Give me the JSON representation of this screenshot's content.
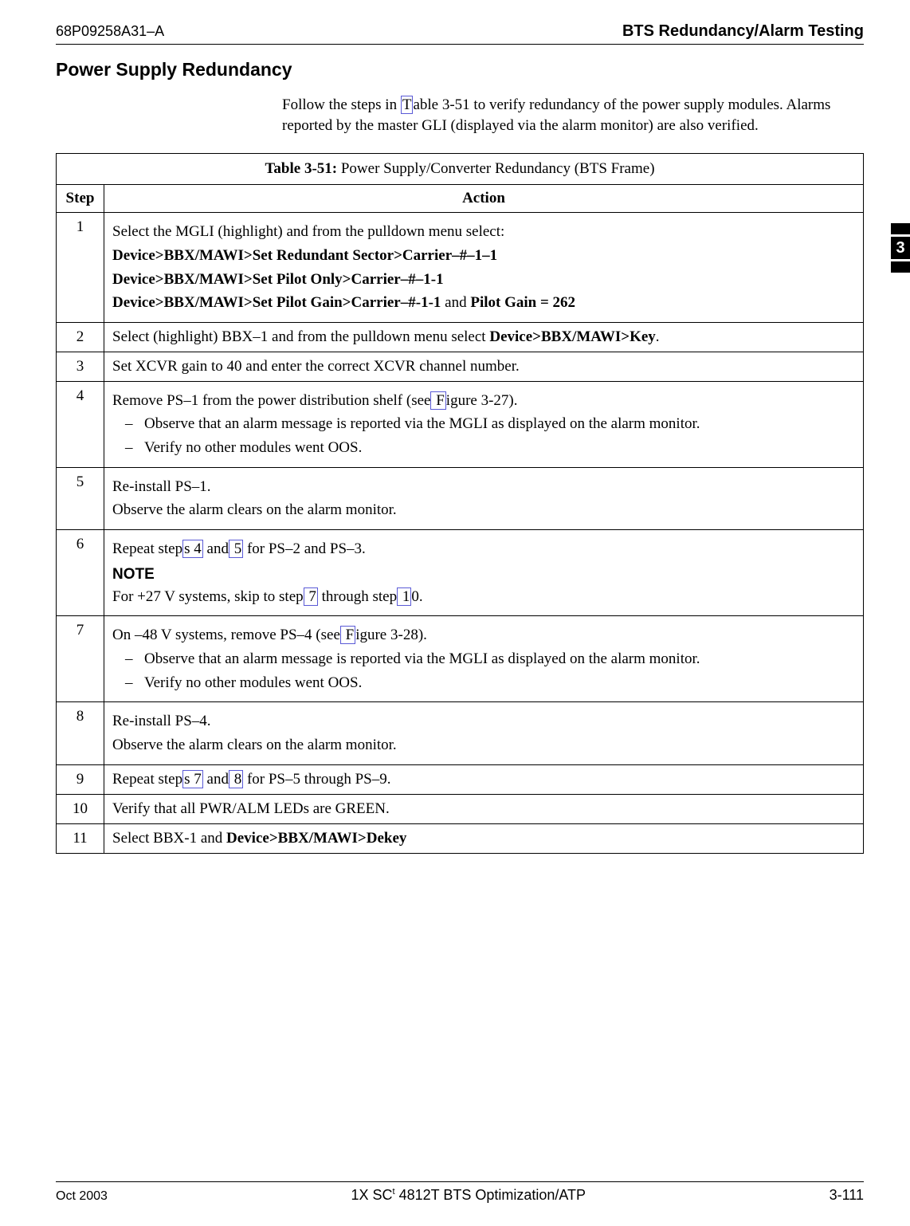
{
  "header": {
    "doc_number": "68P09258A31–A",
    "title": "BTS Redundancy/Alarm Testing"
  },
  "section": {
    "heading": "Power Supply Redundancy",
    "intro_before_link": "Follow the steps in ",
    "intro_link": "T",
    "intro_after_link": "able 3-51 to verify redundancy of the power supply modules. Alarms reported by the master GLI (displayed via the alarm monitor) are also verified."
  },
  "table": {
    "title_prefix": "Table 3-51: ",
    "title_rest": "Power Supply/Converter Redundancy (BTS Frame)",
    "col_step": "Step",
    "col_action": "Action"
  },
  "rows": {
    "r1": {
      "step": "1",
      "l1": "Select the MGLI (highlight) and from the pulldown menu select:",
      "l2": "Device>BBX/MAWI>Set Redundant Sector>Carrier–#–1–1",
      "l3": "Device>BBX/MAWI>Set Pilot Only>Carrier–#–1-1",
      "l4a": "Device>BBX/MAWI>Set Pilot Gain>Carrier–#-1-1",
      "l4b": " and ",
      "l4c": "Pilot Gain = 262"
    },
    "r2": {
      "step": "2",
      "t1": "Select (highlight) BBX–1 and from the pulldown menu select ",
      "t2": "Device>BBX/MAWI>Key",
      "t3": "."
    },
    "r3": {
      "step": "3",
      "t": "Set XCVR gain to 40 and enter the correct XCVR channel number."
    },
    "r4": {
      "step": "4",
      "p1a": "Remove PS–1 from the power distribution shelf (see",
      "p1link": " F",
      "p1b": "igure 3-27).",
      "b1": "Observe that an alarm message is reported via the MGLI as displayed on the alarm monitor.",
      "b2": "Verify no other modules went OOS."
    },
    "r5": {
      "step": "5",
      "p1": "Re-install PS–1.",
      "p2": "Observe the alarm clears on the alarm monitor."
    },
    "r6": {
      "step": "6",
      "p1a": "Repeat step",
      "p1l1": "s 4",
      "p1b": " and",
      "p1l2": " 5",
      "p1c": " for PS–2 and PS–3.",
      "note": "NOTE",
      "p2a": "For +27 V systems, skip to step",
      "p2l1": " 7",
      "p2b": " through step",
      "p2l2": " 1",
      "p2c": "0."
    },
    "r7": {
      "step": "7",
      "p1a": "On –48 V systems, remove PS–4 (see",
      "p1link": " F",
      "p1b": "igure 3-28).",
      "b1": "Observe that an alarm message is reported via the MGLI as displayed on the alarm monitor.",
      "b2": "Verify no other modules went OOS."
    },
    "r8": {
      "step": "8",
      "p1": "Re-install PS–4.",
      "p2": "Observe the alarm clears on the alarm monitor."
    },
    "r9": {
      "step": "9",
      "p1a": "Repeat step",
      "p1l1": "s 7",
      "p1b": " and",
      "p1l2": " 8",
      "p1c": " for PS–5 through PS–9."
    },
    "r10": {
      "step": "10",
      "t": "Verify that all PWR/ALM LEDs are GREEN."
    },
    "r11": {
      "step": "11",
      "t1": "Select BBX-1 and ",
      "t2": "Device>BBX/MAWI>Dekey"
    }
  },
  "side_tab": "3",
  "footer": {
    "left": "Oct 2003",
    "center_a": "1X SC",
    "center_tm": "t",
    "center_b": " 4812T BTS Optimization/ATP",
    "right": "3-111"
  },
  "dash": "–"
}
